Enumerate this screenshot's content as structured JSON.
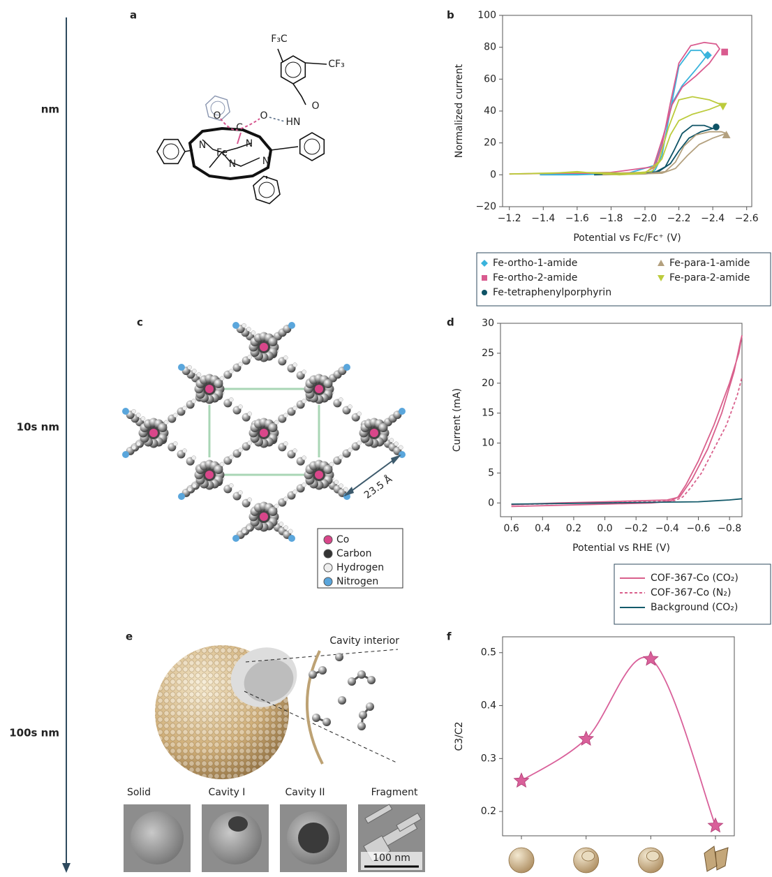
{
  "scale_axis": {
    "labels": [
      "nm",
      "10s nm",
      "100s nm"
    ]
  },
  "panel_labels": [
    "a",
    "b",
    "c",
    "d",
    "e",
    "f"
  ],
  "panel_a": {
    "labels": [
      "F₃C",
      "CF₃",
      "O",
      "HN",
      "O",
      "C",
      "O",
      "N",
      "Fe",
      "N",
      "N",
      "N"
    ]
  },
  "panel_c": {
    "legend": [
      "Co",
      "Carbon",
      "Hydrogen",
      "Nitrogen"
    ],
    "annotation": "23.5 Å"
  },
  "panel_e": {
    "annotation": "Cavity interior",
    "image_labels": [
      "Solid",
      "Cavity I",
      "Cavity II",
      "Fragment"
    ],
    "scale_bar": "100 nm"
  },
  "chart_data": [
    {
      "type": "line",
      "y_label": "Normalized current",
      "x_label": "Potential vs Fc/Fc⁺ (V)",
      "xlim": [
        -1.16,
        -2.63
      ],
      "ylim": [
        -20,
        100
      ],
      "xticks": [
        {
          "value": -1.2,
          "label": "−1.2"
        },
        {
          "value": -1.4,
          "label": "−1.4"
        },
        {
          "value": -1.6,
          "label": "−1.6"
        },
        {
          "value": -1.8,
          "label": "−1.8"
        },
        {
          "value": -2.0,
          "label": "−2.0"
        },
        {
          "value": -2.2,
          "label": "−2.2"
        },
        {
          "value": -2.4,
          "label": "−2.4"
        },
        {
          "value": -2.6,
          "label": "−2.6"
        }
      ],
      "yticks": [
        {
          "value": -20,
          "label": "−20"
        },
        0,
        20,
        40,
        60,
        80,
        100
      ],
      "legend": "below",
      "series": [
        {
          "name": "Fe-ortho-1-amide",
          "color": "#39b3dc",
          "marker": "diamond",
          "marker_at": [
            -2.37,
            75
          ],
          "x": [
            -1.38,
            -1.6,
            -1.8,
            -2.0,
            -2.06,
            -2.1,
            -2.14,
            -2.2,
            -2.27,
            -2.33,
            -2.36,
            -2.3,
            -2.22,
            -2.16,
            -2.11,
            -2.06,
            -1.9,
            -1.6,
            -1.38
          ],
          "values": [
            0,
            0.5,
            0.5,
            1,
            3,
            12,
            35,
            68,
            78,
            78,
            74,
            66,
            56,
            45,
            25,
            6,
            1,
            0,
            0
          ]
        },
        {
          "name": "Fe-ortho-2-amide",
          "color": "#d95b8f",
          "marker": "square",
          "marker_at": [
            -2.47,
            77
          ],
          "x": [
            -1.2,
            -1.5,
            -1.8,
            -2.0,
            -2.06,
            -2.1,
            -2.15,
            -2.2,
            -2.27,
            -2.35,
            -2.42,
            -2.44,
            -2.38,
            -2.3,
            -2.22,
            -2.16,
            -2.11,
            -2.05,
            -1.8,
            -1.5,
            -1.2
          ],
          "values": [
            0.5,
            1,
            1,
            1.5,
            5,
            18,
            45,
            70,
            81,
            83,
            82,
            79,
            70,
            62,
            55,
            44,
            25,
            5,
            1.5,
            1,
            0.5
          ]
        },
        {
          "name": "Fe-tetraphenylporphyrin",
          "color": "#0e5366",
          "marker": "circle",
          "marker_at": [
            -2.42,
            30
          ],
          "x": [
            -1.7,
            -1.9,
            -2.05,
            -2.12,
            -2.17,
            -2.22,
            -2.28,
            -2.35,
            -2.4,
            -2.33,
            -2.26,
            -2.2,
            -2.15,
            -2.08,
            -1.9,
            -1.7
          ],
          "values": [
            0,
            0.5,
            1,
            5,
            15,
            26,
            31,
            31,
            29,
            27,
            23,
            15,
            7,
            2,
            0.5,
            0
          ]
        },
        {
          "name": "Fe-para-1-amide",
          "color": "#b3a07e",
          "marker": "triangle",
          "marker_at": [
            -2.48,
            25
          ],
          "x": [
            -1.75,
            -2.0,
            -2.12,
            -2.18,
            -2.23,
            -2.3,
            -2.38,
            -2.45,
            -2.48,
            -2.4,
            -2.32,
            -2.25,
            -2.18,
            -2.1,
            -1.9,
            -1.75
          ],
          "values": [
            0,
            0.5,
            2,
            8,
            18,
            25,
            27,
            27,
            26,
            23,
            19,
            12,
            4,
            1,
            0.5,
            0
          ]
        },
        {
          "name": "Fe-para-2-amide",
          "color": "#bccb3c",
          "marker": "triangle-down",
          "marker_at": [
            -2.46,
            43
          ],
          "x": [
            -1.2,
            -1.45,
            -1.6,
            -1.7,
            -1.85,
            -2.0,
            -2.08,
            -2.14,
            -2.2,
            -2.28,
            -2.38,
            -2.45,
            -2.38,
            -2.28,
            -2.2,
            -2.15,
            -2.1,
            -2.04,
            -1.9,
            -1.6,
            -1.2
          ],
          "values": [
            0.5,
            1,
            2,
            1,
            0,
            1,
            8,
            30,
            47,
            49,
            47,
            44,
            41,
            38,
            34,
            25,
            10,
            2,
            1,
            1.5,
            0.5
          ]
        }
      ]
    },
    {
      "type": "line",
      "y_label": "Current (mA)",
      "x_label": "Potential vs RHE (V)",
      "xlim": [
        0.67,
        -0.88
      ],
      "ylim": [
        -2.3,
        30
      ],
      "xticks": [
        0.6,
        0.4,
        0.2,
        {
          "value": 0,
          "label": "0.0"
        },
        {
          "value": -0.2,
          "label": "−0.2"
        },
        {
          "value": -0.4,
          "label": "−0.4"
        },
        {
          "value": -0.6,
          "label": "−0.6"
        },
        {
          "value": -0.8,
          "label": "−0.8"
        }
      ],
      "yticks": [
        0,
        5,
        10,
        15,
        20,
        25,
        30
      ],
      "legend": "below-right",
      "series": [
        {
          "name": "COF-367-Co (CO₂)",
          "color": "#d9608c",
          "dash": false,
          "x": [
            0.6,
            0.3,
            0,
            -0.3,
            -0.42,
            -0.47,
            -0.52,
            -0.6,
            -0.7,
            -0.8,
            -0.86,
            -0.88,
            -0.87,
            -0.83,
            -0.75,
            -0.66,
            -0.56,
            -0.48,
            -0.4,
            0,
            0.3,
            0.6
          ],
          "values": [
            -0.6,
            -0.4,
            -0.2,
            0,
            0.3,
            1,
            3,
            7,
            13,
            20,
            25,
            28,
            27,
            22,
            15,
            9,
            4,
            1,
            0.5,
            0.2,
            0,
            -0.3
          ]
        },
        {
          "name": "COF-367-Co (N₂)",
          "color": "#d9608c",
          "dash": true,
          "x": [
            0.6,
            0.3,
            0,
            -0.3,
            -0.45,
            -0.5,
            -0.55,
            -0.62,
            -0.7,
            -0.78,
            -0.85,
            -0.88
          ],
          "values": [
            -0.3,
            -0.1,
            0.1,
            0.2,
            0.4,
            1,
            2.5,
            5,
            9,
            13,
            18,
            21
          ]
        },
        {
          "name": "Background (CO₂)",
          "color": "#135a6a",
          "dash": false,
          "x": [
            0.6,
            0.3,
            0,
            -0.3,
            -0.6,
            -0.8,
            -0.88
          ],
          "values": [
            -0.2,
            -0.1,
            0,
            0.1,
            0.2,
            0.5,
            0.7
          ]
        }
      ]
    },
    {
      "type": "line",
      "y_label": "C3/C2",
      "ylim": [
        0.154,
        0.53
      ],
      "yticks": [
        0.2,
        0.3,
        0.4,
        0.5
      ],
      "categories": [
        null,
        null,
        null,
        null
      ],
      "values": [
        0.258,
        0.337,
        0.488,
        0.173
      ],
      "color": "#d9609a",
      "marker": "star",
      "smooth": true
    }
  ]
}
